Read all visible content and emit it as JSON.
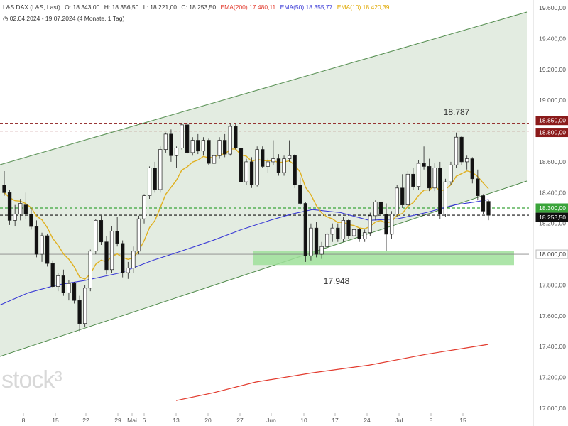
{
  "header": {
    "instrument": "L&S DAX (L&S, Last)",
    "open": "O: 18.343,00",
    "high": "H: 18.356,50",
    "low": "L: 18.221,00",
    "close": "C: 18.253,50",
    "ema200": "EMA(200) 17.480,11",
    "ema50": "EMA(50) 18.355,77",
    "ema10": "EMA(10) 18.420,39",
    "range": "02.04.2024 - 19.07.2024",
    "period": "(4 Monate, 1 Tag)"
  },
  "logo": "stock³",
  "colors": {
    "up": "#ffffff",
    "down": "#111111",
    "ema200": "#e23b2e",
    "ema50": "#3b3bd6",
    "ema10": "#e0b020",
    "channel": "#e3ece1",
    "support_zone": "#9fe09a"
  },
  "chart_data": {
    "type": "candlestick",
    "ylim": [
      16950,
      19650
    ],
    "y_ticks": [
      "19.600,00",
      "19.400,00",
      "19.200,00",
      "19.000,00",
      "18.800,00",
      "18.600,00",
      "18.400,00",
      "18.200,00",
      "18.000,00",
      "17.800,00",
      "17.600,00",
      "17.400,00",
      "17.200,00",
      "17.000,00"
    ],
    "x_ticks": [
      "8",
      "15",
      "22",
      "29",
      "Mai",
      "6",
      "13",
      "20",
      "27",
      "Jun",
      "10",
      "17",
      "24",
      "Jul",
      "8",
      "15"
    ],
    "price_labels": [
      {
        "text": "18.850,00",
        "value": 18850
      },
      {
        "text": "18.800,00",
        "value": 18800
      },
      {
        "text": "18.300,00",
        "value": 18300
      },
      {
        "text": "18.253,50",
        "value": 18253.5
      },
      {
        "text": "18.000,00",
        "value": 18000
      }
    ],
    "annotations": [
      {
        "text": "18.787",
        "value": 18787
      },
      {
        "text": "17.948",
        "value": 17948
      }
    ],
    "candles": [
      [
        18450,
        18540,
        18380,
        18400
      ],
      [
        18400,
        18420,
        18190,
        18220
      ],
      [
        18220,
        18320,
        18180,
        18260
      ],
      [
        18260,
        18360,
        18220,
        18330
      ],
      [
        18320,
        18400,
        18230,
        18260
      ],
      [
        18260,
        18300,
        18160,
        18180
      ],
      [
        18180,
        18220,
        17980,
        18000
      ],
      [
        18000,
        18140,
        17950,
        18120
      ],
      [
        18120,
        18130,
        17920,
        17940
      ],
      [
        17940,
        17960,
        17780,
        17790
      ],
      [
        17790,
        17880,
        17760,
        17860
      ],
      [
        17860,
        17900,
        17730,
        17750
      ],
      [
        17750,
        17830,
        17700,
        17810
      ],
      [
        17810,
        17820,
        17680,
        17700
      ],
      [
        17700,
        17730,
        17500,
        17550
      ],
      [
        17550,
        17800,
        17530,
        17780
      ],
      [
        17780,
        18030,
        17760,
        18020
      ],
      [
        18020,
        18230,
        18000,
        18220
      ],
      [
        18220,
        18250,
        18060,
        18080
      ],
      [
        18080,
        18120,
        17870,
        17900
      ],
      [
        17900,
        18180,
        17880,
        18150
      ],
      [
        18150,
        18240,
        18050,
        18070
      ],
      [
        18070,
        18090,
        17850,
        17880
      ],
      [
        17880,
        17950,
        17840,
        17910
      ],
      [
        17910,
        18050,
        17880,
        18020
      ],
      [
        18020,
        18250,
        18000,
        18230
      ],
      [
        18230,
        18390,
        18200,
        18380
      ],
      [
        18380,
        18570,
        18360,
        18560
      ],
      [
        18560,
        18600,
        18400,
        18420
      ],
      [
        18420,
        18700,
        18400,
        18680
      ],
      [
        18680,
        18790,
        18660,
        18780
      ],
      [
        18780,
        18810,
        18600,
        18640
      ],
      [
        18640,
        18700,
        18560,
        18690
      ],
      [
        18690,
        18850,
        18680,
        18840
      ],
      [
        18840,
        18870,
        18650,
        18660
      ],
      [
        18660,
        18760,
        18640,
        18740
      ],
      [
        18740,
        18780,
        18650,
        18670
      ],
      [
        18670,
        18760,
        18640,
        18740
      ],
      [
        18740,
        18750,
        18580,
        18590
      ],
      [
        18590,
        18660,
        18560,
        18640
      ],
      [
        18640,
        18760,
        18620,
        18740
      ],
      [
        18740,
        18780,
        18630,
        18650
      ],
      [
        18650,
        18850,
        18640,
        18830
      ],
      [
        18830,
        18850,
        18680,
        18690
      ],
      [
        18690,
        18700,
        18450,
        18470
      ],
      [
        18470,
        18620,
        18450,
        18600
      ],
      [
        18600,
        18630,
        18430,
        18450
      ],
      [
        18450,
        18700,
        18440,
        18680
      ],
      [
        18680,
        18700,
        18560,
        18570
      ],
      [
        18570,
        18620,
        18530,
        18600
      ],
      [
        18600,
        18740,
        18580,
        18620
      ],
      [
        18620,
        18650,
        18510,
        18530
      ],
      [
        18530,
        18640,
        18510,
        18620
      ],
      [
        18620,
        18740,
        18600,
        18640
      ],
      [
        18640,
        18650,
        18430,
        18450
      ],
      [
        18450,
        18500,
        18320,
        18330
      ],
      [
        18330,
        18340,
        17950,
        17990
      ],
      [
        17990,
        18200,
        17960,
        18170
      ],
      [
        18170,
        18210,
        17980,
        18000
      ],
      [
        18000,
        18080,
        17970,
        18050
      ],
      [
        18050,
        18140,
        18030,
        18130
      ],
      [
        18130,
        18200,
        18080,
        18170
      ],
      [
        18170,
        18200,
        18080,
        18100
      ],
      [
        18100,
        18240,
        18080,
        18220
      ],
      [
        18220,
        18230,
        18100,
        18120
      ],
      [
        18120,
        18180,
        18100,
        18160
      ],
      [
        18160,
        18170,
        18080,
        18100
      ],
      [
        18100,
        18160,
        18080,
        18140
      ],
      [
        18140,
        18270,
        18120,
        18250
      ],
      [
        18250,
        18350,
        18220,
        18340
      ],
      [
        18340,
        18370,
        18240,
        18260
      ],
      [
        18260,
        18330,
        18020,
        18130
      ],
      [
        18130,
        18280,
        18100,
        18260
      ],
      [
        18260,
        18450,
        18240,
        18430
      ],
      [
        18430,
        18520,
        18300,
        18320
      ],
      [
        18320,
        18540,
        18300,
        18520
      ],
      [
        18520,
        18560,
        18420,
        18440
      ],
      [
        18440,
        18610,
        18420,
        18590
      ],
      [
        18590,
        18700,
        18550,
        18570
      ],
      [
        18570,
        18620,
        18410,
        18430
      ],
      [
        18430,
        18590,
        18410,
        18560
      ],
      [
        18560,
        18600,
        18230,
        18260
      ],
      [
        18260,
        18490,
        18240,
        18470
      ],
      [
        18470,
        18600,
        18450,
        18580
      ],
      [
        18580,
        18790,
        18560,
        18760
      ],
      [
        18760,
        18770,
        18580,
        18600
      ],
      [
        18600,
        18640,
        18550,
        18620
      ],
      [
        18620,
        18630,
        18460,
        18490
      ],
      [
        18490,
        18550,
        18350,
        18380
      ],
      [
        18380,
        18390,
        18260,
        18280
      ],
      [
        18343,
        18356.5,
        18221,
        18253.5
      ]
    ]
  }
}
